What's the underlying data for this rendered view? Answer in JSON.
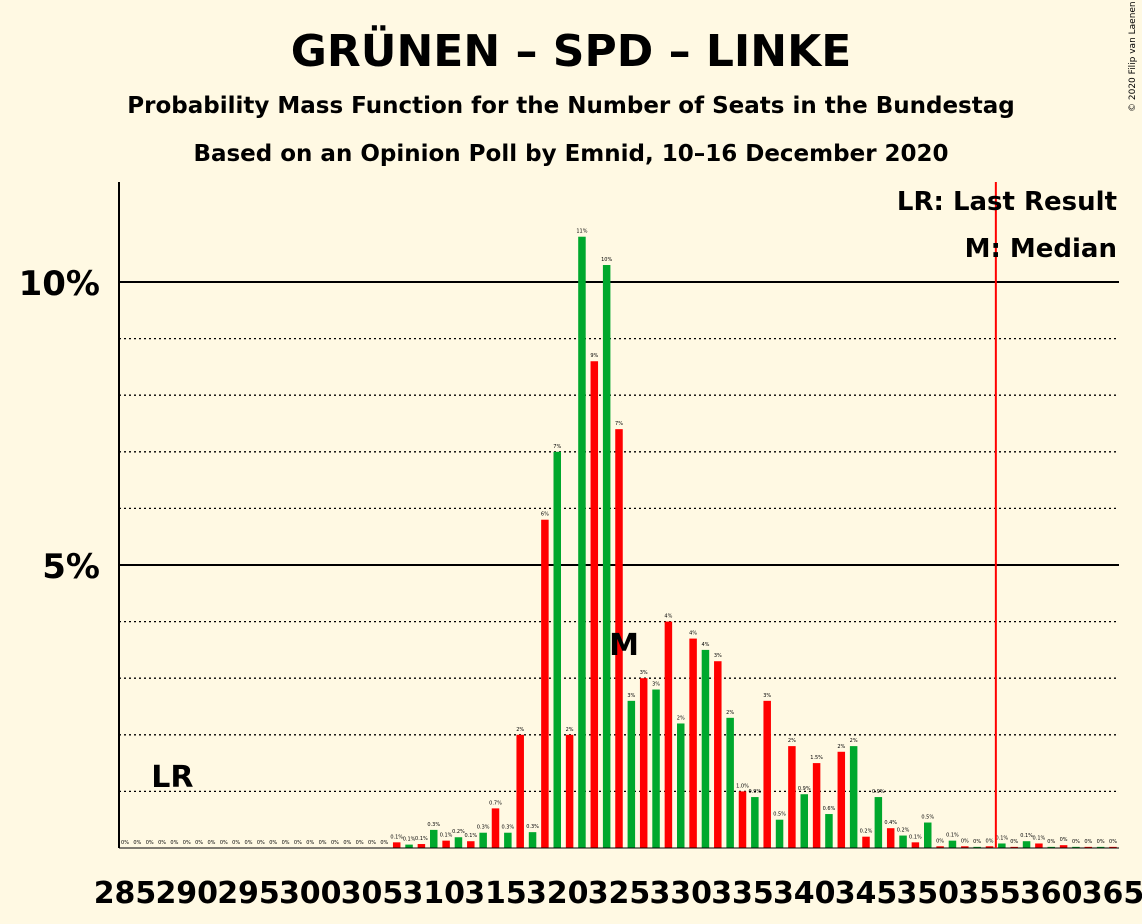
{
  "copyright": "© 2020 Filip van Laenen",
  "chart_data": {
    "type": "bar",
    "title": "GRÜNEN – SPD – LINKE",
    "subtitle": "Probability Mass Function for the Number of Seats in the Bundestag",
    "subtitle2": "Based on an Opinion Poll by Emnid, 10–16 December 2020",
    "ylim": [
      0,
      11.8
    ],
    "yticks": [
      {
        "value": 5,
        "label": "5%"
      },
      {
        "value": 10,
        "label": "10%"
      }
    ],
    "dotted_gridlines": [
      1,
      2,
      3,
      4,
      6,
      7,
      8,
      9
    ],
    "x_start": 285,
    "x_end": 365,
    "xtick_labels": [
      "285",
      "290",
      "295",
      "300",
      "305",
      "310",
      "315",
      "320",
      "325",
      "330",
      "335",
      "340",
      "345",
      "350",
      "355",
      "360",
      "365"
    ],
    "last_result_seat": 356,
    "last_result_marker": "LR",
    "median_seat": 325,
    "median_marker": "M",
    "legend": [
      "LR: Last Result",
      "M: Median"
    ],
    "colors": {
      "odd": "#FF0000",
      "even": "#00A82D",
      "median_marker": "#FFFFFF",
      "last_result_line": "#FF0000"
    },
    "values": [
      0,
      0,
      0,
      0,
      0,
      0,
      0,
      0,
      0,
      0,
      0,
      0,
      0,
      0,
      0,
      0,
      0,
      0,
      0,
      0,
      0,
      0,
      0.1,
      0.06,
      0.07,
      0.32,
      0.13,
      0.19,
      0.12,
      0.27,
      0.7,
      0.27,
      2.0,
      0.28,
      5.8,
      7.0,
      2.0,
      10.8,
      8.6,
      10.3,
      7.4,
      2.6,
      3.0,
      2.8,
      4.0,
      2.2,
      3.7,
      3.5,
      3.3,
      2.3,
      1.0,
      0.9,
      2.6,
      0.5,
      1.8,
      0.95,
      1.5,
      0.6,
      1.7,
      1.8,
      0.2,
      0.9,
      0.35,
      0.22,
      0.1,
      0.45,
      0.03,
      0.13,
      0.03,
      0.02,
      0.03,
      0.08,
      0.02,
      0.12,
      0.08,
      0.02,
      0.05,
      0.02,
      0.02,
      0.02,
      0.02
    ],
    "data_labels": [
      "0%",
      "0%",
      "0%",
      "0%",
      "0%",
      "0%",
      "0%",
      "0%",
      "0%",
      "0%",
      "0%",
      "0%",
      "0%",
      "0%",
      "0%",
      "0%",
      "0%",
      "0%",
      "0%",
      "0%",
      "0%",
      "0%",
      "0.1%",
      "0.1%",
      "0.1%",
      "0.3%",
      "0.1%",
      "0.2%",
      "0.1%",
      "0.3%",
      "0.7%",
      "0.3%",
      "2%",
      "0.3%",
      "6%",
      "7%",
      "2%",
      "11%",
      "9%",
      "10%",
      "7%",
      "3%",
      "3%",
      "3%",
      "4%",
      "2%",
      "4%",
      "4%",
      "3%",
      "2%",
      "1.0%",
      "0.9%",
      "3%",
      "0.5%",
      "2%",
      "0.9%",
      "1.5%",
      "0.6%",
      "2%",
      "2%",
      "0.2%",
      "0.9%",
      "0.4%",
      "0.2%",
      "0.1%",
      "0.5%",
      "0%",
      "0.1%",
      "0%",
      "0%",
      "0%",
      "0.1%",
      "0%",
      "0.1%",
      "0.1%",
      "0%",
      "0%",
      "0%",
      "0%",
      "0%",
      "0%"
    ]
  }
}
